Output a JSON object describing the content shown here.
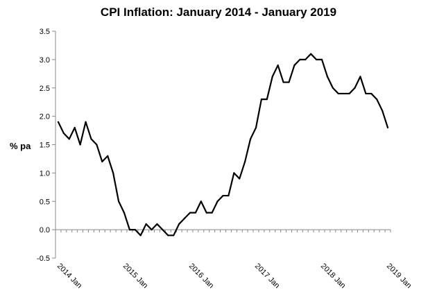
{
  "chart_data": {
    "type": "line",
    "title": "CPI Inflation: January 2014 - January 2019",
    "xlabel": "",
    "ylabel": "% pa",
    "ylim": [
      -0.5,
      3.5
    ],
    "y_ticks": [
      "-0.5",
      "0.0",
      "0.5",
      "1.0",
      "1.5",
      "2.0",
      "2.5",
      "3.0",
      "3.5"
    ],
    "x_tick_labels": [
      "2014 Jan",
      "2015 Jan",
      "2016 Jan",
      "2017 Jan",
      "2018 Jan",
      "2019 Jan"
    ],
    "grid": false,
    "legend": "none",
    "series": [
      {
        "color": "#000000",
        "x": [
          "2014-01",
          "2014-02",
          "2014-03",
          "2014-04",
          "2014-05",
          "2014-06",
          "2014-07",
          "2014-08",
          "2014-09",
          "2014-10",
          "2014-11",
          "2014-12",
          "2015-01",
          "2015-02",
          "2015-03",
          "2015-04",
          "2015-05",
          "2015-06",
          "2015-07",
          "2015-08",
          "2015-09",
          "2015-10",
          "2015-11",
          "2015-12",
          "2016-01",
          "2016-02",
          "2016-03",
          "2016-04",
          "2016-05",
          "2016-06",
          "2016-07",
          "2016-08",
          "2016-09",
          "2016-10",
          "2016-11",
          "2016-12",
          "2017-01",
          "2017-02",
          "2017-03",
          "2017-04",
          "2017-05",
          "2017-06",
          "2017-07",
          "2017-08",
          "2017-09",
          "2017-10",
          "2017-11",
          "2017-12",
          "2018-01",
          "2018-02",
          "2018-03",
          "2018-04",
          "2018-05",
          "2018-06",
          "2018-07",
          "2018-08",
          "2018-09",
          "2018-10",
          "2018-11",
          "2018-12",
          "2019-01"
        ],
        "values": [
          1.9,
          1.7,
          1.6,
          1.8,
          1.5,
          1.9,
          1.6,
          1.5,
          1.2,
          1.3,
          1.0,
          0.5,
          0.3,
          0.0,
          0.0,
          -0.1,
          0.1,
          0.0,
          0.1,
          0.0,
          -0.1,
          -0.1,
          0.1,
          0.2,
          0.3,
          0.3,
          0.5,
          0.3,
          0.3,
          0.5,
          0.6,
          0.6,
          1.0,
          0.9,
          1.2,
          1.6,
          1.8,
          2.3,
          2.3,
          2.7,
          2.9,
          2.6,
          2.6,
          2.9,
          3.0,
          3.0,
          3.1,
          3.0,
          3.0,
          2.7,
          2.5,
          2.4,
          2.4,
          2.4,
          2.5,
          2.7,
          2.4,
          2.4,
          2.3,
          2.1,
          1.8
        ]
      }
    ]
  }
}
